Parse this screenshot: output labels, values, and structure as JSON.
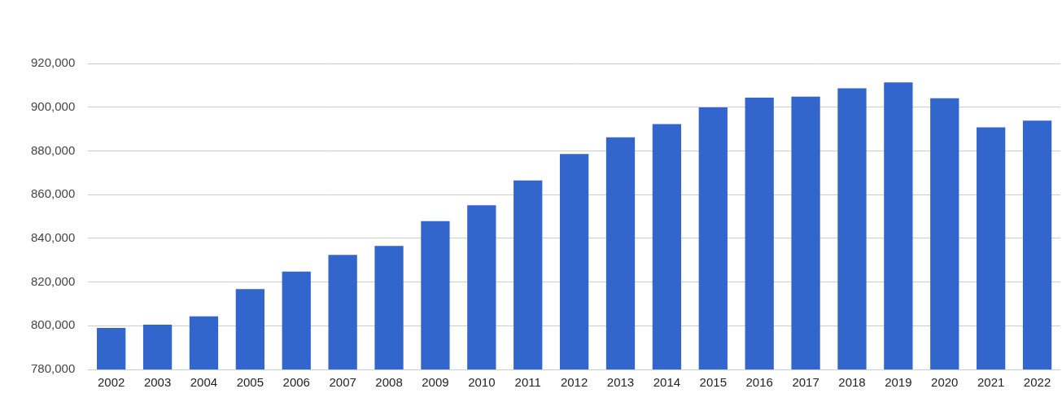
{
  "chart_data": {
    "type": "bar",
    "categories": [
      "2002",
      "2003",
      "2004",
      "2005",
      "2006",
      "2007",
      "2008",
      "2009",
      "2010",
      "2011",
      "2012",
      "2013",
      "2014",
      "2015",
      "2016",
      "2017",
      "2018",
      "2019",
      "2020",
      "2021",
      "2022"
    ],
    "values": [
      799000,
      800500,
      804300,
      816800,
      824800,
      832400,
      836500,
      847900,
      855100,
      866500,
      878600,
      886200,
      892300,
      899900,
      904400,
      904800,
      908600,
      911300,
      904100,
      890800,
      893800
    ],
    "color": "#3366cc",
    "ylim": [
      780000,
      920000
    ],
    "yticks": [
      {
        "value": 780000,
        "label": "780,000"
      },
      {
        "value": 800000,
        "label": "800,000"
      },
      {
        "value": 820000,
        "label": "820,000"
      },
      {
        "value": 840000,
        "label": "840,000"
      },
      {
        "value": 860000,
        "label": "860,000"
      },
      {
        "value": 880000,
        "label": "880,000"
      },
      {
        "value": 900000,
        "label": "900,000"
      },
      {
        "value": 920000,
        "label": "920,000"
      }
    ],
    "grid": true
  }
}
